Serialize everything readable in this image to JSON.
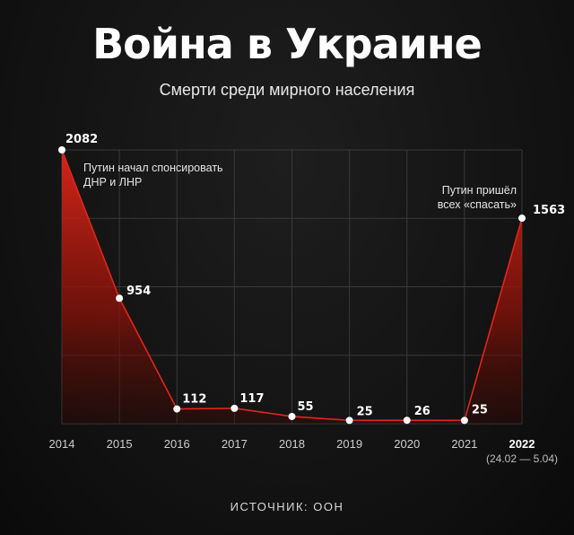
{
  "header": {
    "title": "Война в Украине",
    "subtitle": "Смерти среди мирного населения"
  },
  "chart_data": {
    "type": "area",
    "title": "Война в Украине",
    "subtitle": "Смерти среди мирного населения",
    "categories": [
      "2014",
      "2015",
      "2016",
      "2017",
      "2018",
      "2019",
      "2020",
      "2021",
      "2022"
    ],
    "x_sublabels": [
      "",
      "",
      "",
      "",
      "",
      "",
      "",
      "",
      "(24.02 — 5.04)"
    ],
    "values": [
      2082,
      954,
      112,
      117,
      55,
      25,
      26,
      25,
      1563
    ],
    "value_labels": [
      "2082",
      "954",
      "112",
      "117",
      "55",
      "25",
      "26",
      "25",
      "1563"
    ],
    "ylim": [
      0,
      2082
    ],
    "grid": true,
    "accent_color": "#e0261a",
    "annotations": [
      {
        "text": [
          "Путин начал спонсировать",
          "ДНР и ЛНР"
        ],
        "category": "2014"
      },
      {
        "text": [
          "Путин пришёл",
          "всех «спасать»"
        ],
        "category": "2022"
      }
    ]
  },
  "footer": {
    "source": "ИСТОЧНИК: ООН"
  }
}
